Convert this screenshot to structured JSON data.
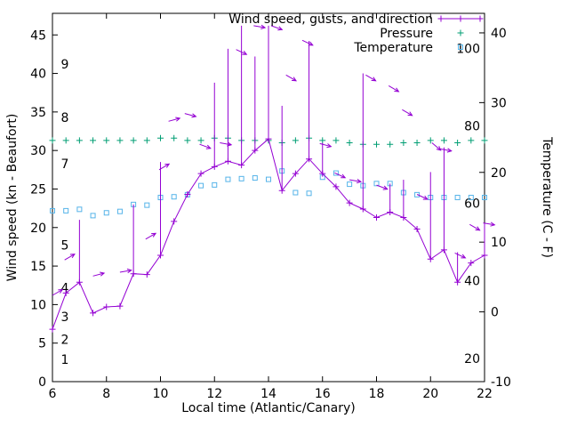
{
  "window": {
    "background_color": "#ffffff",
    "text_color": "#000000"
  },
  "chart_data": {
    "type": "line",
    "title": "",
    "xlabel": "Local time (Atlantic/Canary)",
    "ylabel_left": "Wind speed (kn - Beaufort)",
    "ylabel_right": "Temperature (C - F)",
    "grid": false,
    "legend_position": "top-right-inside",
    "legend": [
      {
        "name": "Wind speed, gusts, and direction",
        "color": "#9400d3",
        "marker": "plus-line"
      },
      {
        "name": "Pressure",
        "color": "#009e73",
        "marker": "plus"
      },
      {
        "name": "Temperature",
        "color": "#56b4e9",
        "marker": "square"
      }
    ],
    "x_range": [
      6,
      22
    ],
    "x_ticks": [
      6,
      8,
      10,
      12,
      14,
      16,
      18,
      20,
      22
    ],
    "y_left_range": [
      0,
      47.8
    ],
    "y_left_ticks": [
      0,
      5,
      10,
      15,
      20,
      25,
      30,
      35,
      40,
      45
    ],
    "y_right_range": [
      -10,
      42.8
    ],
    "y_right_ticks": [
      -10,
      0,
      10,
      20,
      30,
      40
    ],
    "beaufort_labels": [
      {
        "label": "1",
        "kn": 2.9
      },
      {
        "label": "2",
        "kn": 5.5
      },
      {
        "label": "3",
        "kn": 8.4
      },
      {
        "label": "4",
        "kn": 12.2
      },
      {
        "label": "5",
        "kn": 17.7
      },
      {
        "label": "7",
        "kn": 28.3
      },
      {
        "label": "8",
        "kn": 34.3
      },
      {
        "label": "9",
        "kn": 41.2
      }
    ],
    "fahrenheit_labels": [
      20,
      40,
      60,
      80,
      100
    ],
    "x": [
      6,
      6.5,
      7,
      7.5,
      8,
      8.5,
      9,
      9.5,
      10,
      10.5,
      11,
      11.5,
      12,
      12.5,
      13,
      13.5,
      14,
      14.5,
      15,
      15.5,
      16,
      16.5,
      17,
      17.5,
      18,
      18.5,
      19,
      19.5,
      20,
      20.5,
      21,
      21.5,
      22
    ],
    "wind_speed_kn": [
      6.8,
      11.5,
      12.9,
      8.9,
      9.7,
      9.8,
      14,
      13.9,
      16.4,
      20.8,
      24.3,
      27,
      27.9,
      28.6,
      28.1,
      30,
      31.5,
      24.8,
      27,
      28.9,
      27,
      25.3,
      23.2,
      22.4,
      21.3,
      22,
      21.3,
      19.8,
      15.9,
      17.1,
      12.9,
      15.4,
      16.4
    ],
    "wind_gust_kn": [
      6.8,
      11.5,
      21,
      8.9,
      9.7,
      9.8,
      23,
      13.9,
      28.5,
      20.8,
      24.3,
      27,
      38.8,
      43.2,
      46.2,
      42.2,
      46.2,
      35.8,
      27,
      44.2,
      31,
      25.3,
      23.2,
      40,
      21.3,
      25.7,
      26.2,
      19.8,
      27.2,
      30.4,
      16.8,
      15.4,
      20.6
    ],
    "pressure_plot_values": [
      31.3,
      31.3,
      31.3,
      31.3,
      31.3,
      31.3,
      31.3,
      31.3,
      31.6,
      31.6,
      31.3,
      31.3,
      31.6,
      31.6,
      31.3,
      31.3,
      31.3,
      31.0,
      31.3,
      31.6,
      31.3,
      31.3,
      31.0,
      30.8,
      30.8,
      30.8,
      31.0,
      31.0,
      31.3,
      31.3,
      31.0,
      31.3,
      31.3
    ],
    "temperature_c": [
      14.5,
      14.5,
      14.7,
      13.8,
      14.2,
      14.4,
      15.4,
      15.3,
      16.4,
      16.5,
      16.8,
      18.1,
      18.2,
      19,
      19.1,
      19.2,
      19,
      20.2,
      17.1,
      17,
      19.3,
      19.9,
      18.3,
      18.1,
      18.4,
      18.4,
      17.1,
      16.8,
      16.4,
      16.4,
      16.4,
      16.4,
      16.4
    ],
    "wind_direction_arrows": [
      {
        "t": 6.0,
        "kn": 11.2,
        "angle_deg": 30
      },
      {
        "t": 6.45,
        "kn": 15.8,
        "angle_deg": 30
      },
      {
        "t": 7.5,
        "kn": 13.7,
        "angle_deg": 15
      },
      {
        "t": 8.5,
        "kn": 14.2,
        "angle_deg": 10
      },
      {
        "t": 9.45,
        "kn": 18.5,
        "angle_deg": 30
      },
      {
        "t": 9.95,
        "kn": 27.5,
        "angle_deg": 30
      },
      {
        "t": 10.3,
        "kn": 33.8,
        "angle_deg": 15
      },
      {
        "t": 10.9,
        "kn": 34.8,
        "angle_deg": -15
      },
      {
        "t": 11.45,
        "kn": 30.8,
        "angle_deg": -20
      },
      {
        "t": 12.2,
        "kn": 31.0,
        "angle_deg": -10
      },
      {
        "t": 12.8,
        "kn": 43.1,
        "angle_deg": -25
      },
      {
        "t": 13.45,
        "kn": 46.2,
        "angle_deg": -10
      },
      {
        "t": 14.1,
        "kn": 46.2,
        "angle_deg": -20
      },
      {
        "t": 14.65,
        "kn": 39.8,
        "angle_deg": -30
      },
      {
        "t": 15.25,
        "kn": 44.3,
        "angle_deg": -25
      },
      {
        "t": 15.9,
        "kn": 30.9,
        "angle_deg": -15
      },
      {
        "t": 16.45,
        "kn": 27.1,
        "angle_deg": -25
      },
      {
        "t": 17.0,
        "kn": 26.2,
        "angle_deg": -10
      },
      {
        "t": 17.6,
        "kn": 39.8,
        "angle_deg": -30
      },
      {
        "t": 18.0,
        "kn": 25.5,
        "angle_deg": -20
      },
      {
        "t": 18.45,
        "kn": 38.4,
        "angle_deg": -30
      },
      {
        "t": 18.95,
        "kn": 35.3,
        "angle_deg": -30
      },
      {
        "t": 19.5,
        "kn": 24.3,
        "angle_deg": -25
      },
      {
        "t": 20.05,
        "kn": 31.0,
        "angle_deg": -40
      },
      {
        "t": 20.35,
        "kn": 30.2,
        "angle_deg": -10
      },
      {
        "t": 20.9,
        "kn": 16.7,
        "angle_deg": -25
      },
      {
        "t": 21.45,
        "kn": 20.4,
        "angle_deg": -30
      },
      {
        "t": 21.95,
        "kn": 20.6,
        "angle_deg": -10
      }
    ]
  }
}
